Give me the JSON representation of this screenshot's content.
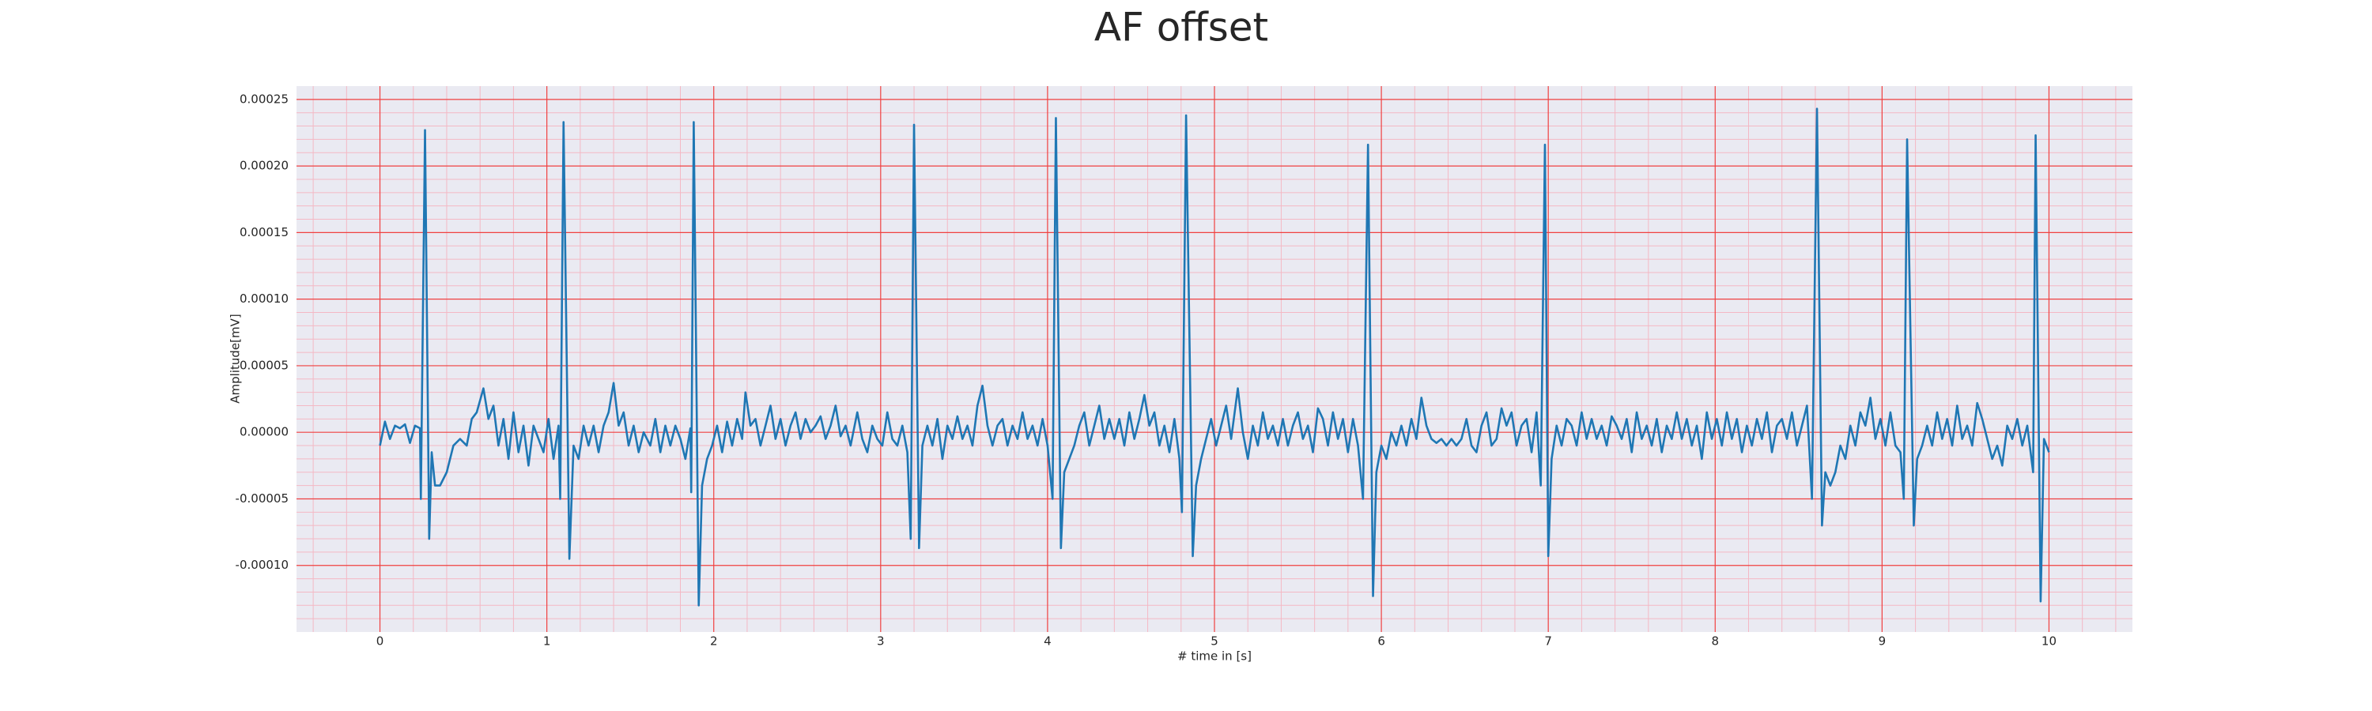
{
  "chart_data": {
    "type": "line",
    "title": "AF offset",
    "xlabel": "# time in [s]",
    "ylabel": "Amplitude[mV]",
    "xlim": [
      -0.5,
      10.5
    ],
    "ylim": [
      -0.00015,
      0.00026
    ],
    "xticks": [
      0,
      1,
      2,
      3,
      4,
      5,
      6,
      7,
      8,
      9,
      10
    ],
    "yticks": [
      {
        "value": -0.0001,
        "label": "-0.00010"
      },
      {
        "value": -5e-05,
        "label": "-0.00005"
      },
      {
        "value": 0,
        "label": "0.00000"
      },
      {
        "value": 5e-05,
        "label": "0.00005"
      },
      {
        "value": 0.0001,
        "label": "0.00010"
      },
      {
        "value": 0.00015,
        "label": "0.00015"
      },
      {
        "value": 0.0002,
        "label": "0.00020"
      },
      {
        "value": 0.00025,
        "label": "0.00025"
      }
    ],
    "grid": true,
    "minor_grid": true,
    "grid_color": "#f04040",
    "minor_grid_color": "#f4b8c4",
    "background": "#eaeaf2",
    "x": [
      0,
      0.03,
      0.06,
      0.09,
      0.12,
      0.15,
      0.18,
      0.21,
      0.24,
      0.245,
      0.27,
      0.295,
      0.31,
      0.33,
      0.36,
      0.4,
      0.44,
      0.48,
      0.52,
      0.55,
      0.58,
      0.62,
      0.65,
      0.68,
      0.71,
      0.74,
      0.77,
      0.8,
      0.83,
      0.86,
      0.89,
      0.92,
      0.95,
      0.98,
      1.01,
      1.04,
      1.07,
      1.08,
      1.1,
      1.135,
      1.16,
      1.19,
      1.22,
      1.25,
      1.28,
      1.31,
      1.34,
      1.37,
      1.4,
      1.43,
      1.46,
      1.49,
      1.52,
      1.55,
      1.58,
      1.62,
      1.65,
      1.68,
      1.71,
      1.74,
      1.77,
      1.8,
      1.83,
      1.86,
      1.865,
      1.88,
      1.91,
      1.93,
      1.96,
      1.99,
      2.02,
      2.05,
      2.08,
      2.11,
      2.14,
      2.17,
      2.19,
      2.22,
      2.25,
      2.28,
      2.31,
      2.34,
      2.37,
      2.4,
      2.43,
      2.46,
      2.49,
      2.52,
      2.55,
      2.58,
      2.61,
      2.64,
      2.67,
      2.7,
      2.73,
      2.76,
      2.79,
      2.82,
      2.86,
      2.89,
      2.92,
      2.95,
      2.98,
      3.01,
      3.04,
      3.07,
      3.1,
      3.13,
      3.16,
      3.18,
      3.2,
      3.23,
      3.25,
      3.28,
      3.31,
      3.34,
      3.37,
      3.4,
      3.43,
      3.46,
      3.49,
      3.52,
      3.55,
      3.58,
      3.61,
      3.64,
      3.67,
      3.7,
      3.73,
      3.76,
      3.79,
      3.82,
      3.85,
      3.88,
      3.91,
      3.94,
      3.97,
      4.0,
      4.03,
      4.05,
      4.08,
      4.1,
      4.13,
      4.16,
      4.19,
      4.22,
      4.25,
      4.28,
      4.31,
      4.34,
      4.37,
      4.4,
      4.43,
      4.46,
      4.49,
      4.52,
      4.55,
      4.58,
      4.61,
      4.64,
      4.67,
      4.7,
      4.73,
      4.76,
      4.79,
      4.805,
      4.83,
      4.87,
      4.89,
      4.92,
      4.95,
      4.98,
      5.01,
      5.04,
      5.07,
      5.1,
      5.14,
      5.17,
      5.2,
      5.23,
      5.26,
      5.29,
      5.32,
      5.35,
      5.38,
      5.41,
      5.44,
      5.47,
      5.5,
      5.53,
      5.56,
      5.59,
      5.62,
      5.65,
      5.68,
      5.71,
      5.74,
      5.77,
      5.8,
      5.83,
      5.86,
      5.89,
      5.92,
      5.95,
      5.97,
      6.0,
      6.03,
      6.06,
      6.09,
      6.12,
      6.15,
      6.18,
      6.21,
      6.24,
      6.27,
      6.3,
      6.33,
      6.36,
      6.39,
      6.42,
      6.45,
      6.48,
      6.51,
      6.54,
      6.57,
      6.6,
      6.63,
      6.66,
      6.69,
      6.72,
      6.75,
      6.78,
      6.81,
      6.84,
      6.87,
      6.9,
      6.93,
      6.955,
      6.98,
      7.0,
      7.02,
      7.05,
      7.08,
      7.11,
      7.14,
      7.17,
      7.2,
      7.23,
      7.26,
      7.29,
      7.32,
      7.35,
      7.38,
      7.41,
      7.44,
      7.47,
      7.5,
      7.53,
      7.56,
      7.59,
      7.62,
      7.65,
      7.68,
      7.71,
      7.74,
      7.77,
      7.8,
      7.83,
      7.86,
      7.89,
      7.92,
      7.95,
      7.98,
      8.01,
      8.04,
      8.07,
      8.1,
      8.13,
      8.16,
      8.19,
      8.22,
      8.25,
      8.28,
      8.31,
      8.34,
      8.37,
      8.4,
      8.43,
      8.46,
      8.49,
      8.52,
      8.55,
      8.58,
      8.61,
      8.64,
      8.66,
      8.69,
      8.72,
      8.75,
      8.78,
      8.81,
      8.84,
      8.87,
      8.9,
      8.93,
      8.96,
      8.99,
      9.02,
      9.05,
      9.08,
      9.11,
      9.13,
      9.15,
      9.19,
      9.21,
      9.24,
      9.27,
      9.3,
      9.33,
      9.36,
      9.39,
      9.42,
      9.45,
      9.48,
      9.51,
      9.54,
      9.57,
      9.6,
      9.63,
      9.66,
      9.69,
      9.72,
      9.75,
      9.78,
      9.81,
      9.84,
      9.87,
      9.89,
      9.905,
      9.92,
      9.95,
      9.97,
      10.0
    ],
    "series": [
      {
        "color": "#1f77b4",
        "values": [
          -1e-05,
          8e-06,
          -5e-06,
          5e-06,
          3e-06,
          6e-06,
          -8e-06,
          5e-06,
          3e-06,
          -5e-05,
          0.000227,
          -8e-05,
          -1.5e-05,
          -4e-05,
          -4e-05,
          -3e-05,
          -1e-05,
          -5e-06,
          -1e-05,
          1e-05,
          1.5e-05,
          3.3e-05,
          1e-05,
          2e-05,
          -1e-05,
          1e-05,
          -2e-05,
          1.5e-05,
          -1.5e-05,
          5e-06,
          -2.5e-05,
          5e-06,
          -5e-06,
          -1.5e-05,
          1e-05,
          -2e-05,
          5e-06,
          -5e-05,
          0.000233,
          -9.5e-05,
          -1e-05,
          -2e-05,
          5e-06,
          -1e-05,
          5e-06,
          -1.5e-05,
          5e-06,
          1.5e-05,
          3.7e-05,
          5e-06,
          1.5e-05,
          -1e-05,
          5e-06,
          -1.5e-05,
          0,
          -1e-05,
          1e-05,
          -1.5e-05,
          5e-06,
          -1e-05,
          5e-06,
          -5e-06,
          -2e-05,
          3e-06,
          -4.5e-05,
          0.000233,
          -0.00013,
          -4e-05,
          -2e-05,
          -1e-05,
          5e-06,
          -1.5e-05,
          8e-06,
          -1e-05,
          1e-05,
          -5e-06,
          3e-05,
          5e-06,
          1e-05,
          -1e-05,
          5e-06,
          2e-05,
          -5e-06,
          1e-05,
          -1e-05,
          5e-06,
          1.5e-05,
          -5e-06,
          1e-05,
          0,
          5e-06,
          1.2e-05,
          -5e-06,
          5e-06,
          2e-05,
          -3e-06,
          5e-06,
          -1e-05,
          1.5e-05,
          -5e-06,
          -1.5e-05,
          5e-06,
          -5e-06,
          -1e-05,
          1.5e-05,
          -5e-06,
          -1e-05,
          5e-06,
          -1.5e-05,
          -8e-05,
          0.000231,
          -8.7e-05,
          -1e-05,
          5e-06,
          -1e-05,
          1e-05,
          -2e-05,
          5e-06,
          -5e-06,
          1.2e-05,
          -5e-06,
          5e-06,
          -1e-05,
          2e-05,
          3.5e-05,
          5e-06,
          -1e-05,
          5e-06,
          1e-05,
          -1e-05,
          5e-06,
          -5e-06,
          1.5e-05,
          -5e-06,
          5e-06,
          -1e-05,
          1e-05,
          -1e-05,
          -5e-05,
          0.000236,
          -8.7e-05,
          -3e-05,
          -2e-05,
          -1e-05,
          5e-06,
          1.5e-05,
          -1e-05,
          5e-06,
          2e-05,
          -5e-06,
          1e-05,
          -5e-06,
          1e-05,
          -1e-05,
          1.5e-05,
          -5e-06,
          1e-05,
          2.8e-05,
          5e-06,
          1.5e-05,
          -1e-05,
          5e-06,
          -1.5e-05,
          1e-05,
          -2e-05,
          -6e-05,
          0.000238,
          -9.3e-05,
          -4e-05,
          -2e-05,
          -5e-06,
          1e-05,
          -1e-05,
          5e-06,
          2e-05,
          -5e-06,
          3.3e-05,
          0,
          -2e-05,
          5e-06,
          -1e-05,
          1.5e-05,
          -5e-06,
          5e-06,
          -1e-05,
          1e-05,
          -1e-05,
          5e-06,
          1.5e-05,
          -5e-06,
          5e-06,
          -1.5e-05,
          1.8e-05,
          1e-05,
          -1e-05,
          1.5e-05,
          -5e-06,
          1e-05,
          -1.5e-05,
          1e-05,
          -1e-05,
          -5e-05,
          0.000216,
          -0.000123,
          -3e-05,
          -1e-05,
          -2e-05,
          0,
          -1e-05,
          5e-06,
          -1e-05,
          1e-05,
          -5e-06,
          2.6e-05,
          5e-06,
          -5e-06,
          -8e-06,
          -5e-06,
          -1e-05,
          -5e-06,
          -1e-05,
          -5e-06,
          1e-05,
          -1e-05,
          -1.5e-05,
          5e-06,
          1.5e-05,
          -1e-05,
          -5e-06,
          1.8e-05,
          5e-06,
          1.5e-05,
          -1e-05,
          5e-06,
          1e-05,
          -1.5e-05,
          1.5e-05,
          -4e-05,
          0.000216,
          -9.3e-05,
          -2e-05,
          5e-06,
          -1e-05,
          1e-05,
          5e-06,
          -1e-05,
          1.5e-05,
          -5e-06,
          1e-05,
          -5e-06,
          5e-06,
          -1e-05,
          1.2e-05,
          5e-06,
          -5e-06,
          1e-05,
          -1.5e-05,
          1.5e-05,
          -5e-06,
          5e-06,
          -1e-05,
          1e-05,
          -1.5e-05,
          5e-06,
          -5e-06,
          1.5e-05,
          -5e-06,
          1e-05,
          -1e-05,
          5e-06,
          -2e-05,
          1.5e-05,
          -5e-06,
          1e-05,
          -1e-05,
          1.5e-05,
          -5e-06,
          1e-05,
          -1.5e-05,
          5e-06,
          -1e-05,
          1e-05,
          -5e-06,
          1.5e-05,
          -1.5e-05,
          5e-06,
          1e-05,
          -5e-06,
          1.5e-05,
          -1e-05,
          5e-06,
          2e-05,
          -5e-05,
          0.000243,
          -7e-05,
          -3e-05,
          -4e-05,
          -3e-05,
          -1e-05,
          -2e-05,
          5e-06,
          -1e-05,
          1.5e-05,
          5e-06,
          2.6e-05,
          -5e-06,
          1e-05,
          -1e-05,
          1.5e-05,
          -1e-05,
          -1.5e-05,
          -5e-05,
          0.00022,
          -7e-05,
          -2e-05,
          -1e-05,
          5e-06,
          -1e-05,
          1.5e-05,
          -5e-06,
          1e-05,
          -1e-05,
          2e-05,
          -5e-06,
          5e-06,
          -1e-05,
          2.2e-05,
          1e-05,
          -5e-06,
          -2e-05,
          -1e-05,
          -2.5e-05,
          5e-06,
          -5e-06,
          1e-05,
          -1e-05,
          5e-06,
          -1.5e-05,
          -3e-05,
          0.000223,
          -0.000127,
          -5e-06,
          -1.5e-05
        ]
      }
    ]
  }
}
